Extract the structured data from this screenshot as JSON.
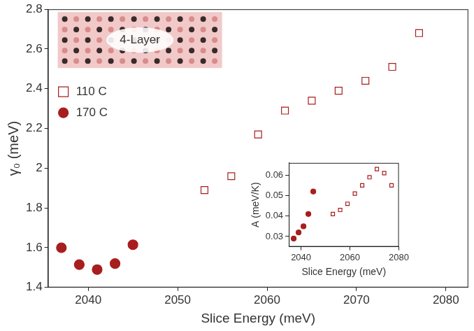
{
  "chart_data": [
    {
      "type": "scatter",
      "x_label": "Slice Energy (meV)",
      "y_label": "γ₀ (meV)",
      "annotation": "4-Layer",
      "xlim": [
        2035.5,
        2082.5
      ],
      "xticks": [
        2040,
        2050,
        2060,
        2070,
        2080
      ],
      "ylim": [
        1.4,
        2.8
      ],
      "yticks": [
        1.4,
        1.6,
        1.8,
        2,
        2.2,
        2.4,
        2.6,
        2.8
      ],
      "grid": false,
      "legend": "upper left",
      "series": [
        {
          "name": "110 C",
          "color": "#a81e1e",
          "marker": "square-open",
          "x": [
            2053,
            2056,
            2059,
            2062,
            2065,
            2068,
            2071,
            2074,
            2077
          ],
          "values": [
            1.89,
            1.96,
            2.17,
            2.29,
            2.34,
            2.39,
            2.44,
            2.51,
            2.68
          ]
        },
        {
          "name": "170 C",
          "color": "#a81e1e",
          "marker": "circle",
          "x": [
            2037,
            2039,
            2041,
            2043,
            2045
          ],
          "values": [
            1.6,
            1.515,
            1.49,
            1.52,
            1.615
          ]
        }
      ]
    },
    {
      "type": "scatter",
      "x_label": "Slice Energy (meV)",
      "y_label": "A (meV/K)",
      "xlim": [
        2035,
        2080
      ],
      "xticks": [
        2040,
        2060,
        2080
      ],
      "ylim": [
        0.025,
        0.066
      ],
      "yticks": [
        0.03,
        0.04,
        0.05,
        0.06
      ],
      "grid": false,
      "series": [
        {
          "color": "#a81e1e",
          "marker": "square-open",
          "x": [
            2053,
            2056,
            2059,
            2062,
            2065,
            2068,
            2071,
            2074,
            2077
          ],
          "values": [
            0.041,
            0.043,
            0.046,
            0.051,
            0.055,
            0.059,
            0.063,
            0.061,
            0.055
          ]
        },
        {
          "color": "#a81e1e",
          "marker": "circle",
          "x": [
            2037,
            2039,
            2041,
            2043,
            2045
          ],
          "values": [
            0.029,
            0.032,
            0.035,
            0.041,
            0.052
          ]
        }
      ]
    }
  ]
}
